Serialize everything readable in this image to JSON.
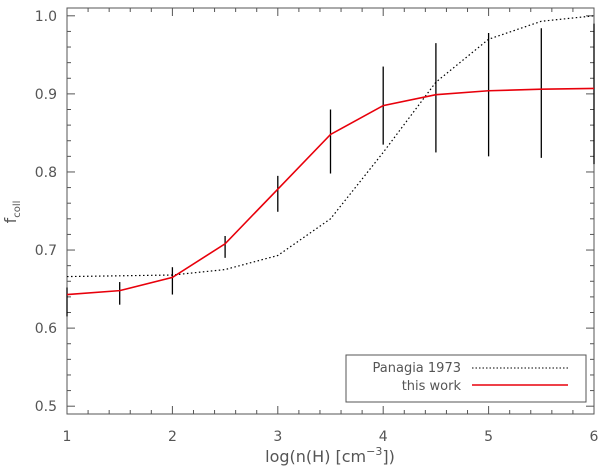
{
  "chart_data": {
    "type": "line",
    "xlabel_main": "log(n(H) [cm",
    "xlabel_sup": "−3",
    "xlabel_tail": "])",
    "ylabel_main": "f",
    "ylabel_sub": "coll",
    "xlim": [
      1,
      6
    ],
    "ylim": [
      0.49,
      1.01
    ],
    "x_ticks": [
      1,
      2,
      3,
      4,
      5,
      6
    ],
    "x_tick_labels": [
      "1",
      "2",
      "3",
      "4",
      "5",
      "6"
    ],
    "y_ticks": [
      0.5,
      0.6,
      0.7,
      0.8,
      0.9,
      1.0
    ],
    "y_tick_labels": [
      "0.5",
      "0.6",
      "0.7",
      "0.8",
      "0.9",
      "1.0"
    ],
    "grid": false,
    "legend_position": "bottom-right",
    "series": [
      {
        "name": "Panagia 1973",
        "color": "#000000",
        "style": "dotted",
        "x": [
          1,
          1.5,
          2,
          2.5,
          3,
          3.5,
          4,
          4.5,
          5,
          5.5,
          6
        ],
        "y": [
          0.666,
          0.667,
          0.668,
          0.675,
          0.693,
          0.74,
          0.825,
          0.915,
          0.97,
          0.993,
          1.0
        ]
      },
      {
        "name": "this work",
        "color": "#e8000b",
        "style": "solid",
        "x": [
          1,
          1.5,
          2,
          2.5,
          3,
          3.5,
          4,
          4.5,
          5,
          5.5,
          6
        ],
        "y": [
          0.643,
          0.648,
          0.665,
          0.708,
          0.778,
          0.848,
          0.885,
          0.899,
          0.904,
          0.906,
          0.907
        ],
        "error_bars": {
          "color": "#000000",
          "low": [
            0.615,
            0.63,
            0.643,
            0.69,
            0.749,
            0.798,
            0.835,
            0.825,
            0.82,
            0.818,
            0.81
          ],
          "high": [
            0.652,
            0.659,
            0.678,
            0.718,
            0.795,
            0.88,
            0.935,
            0.965,
            0.978,
            0.984,
            0.99
          ]
        }
      }
    ]
  }
}
